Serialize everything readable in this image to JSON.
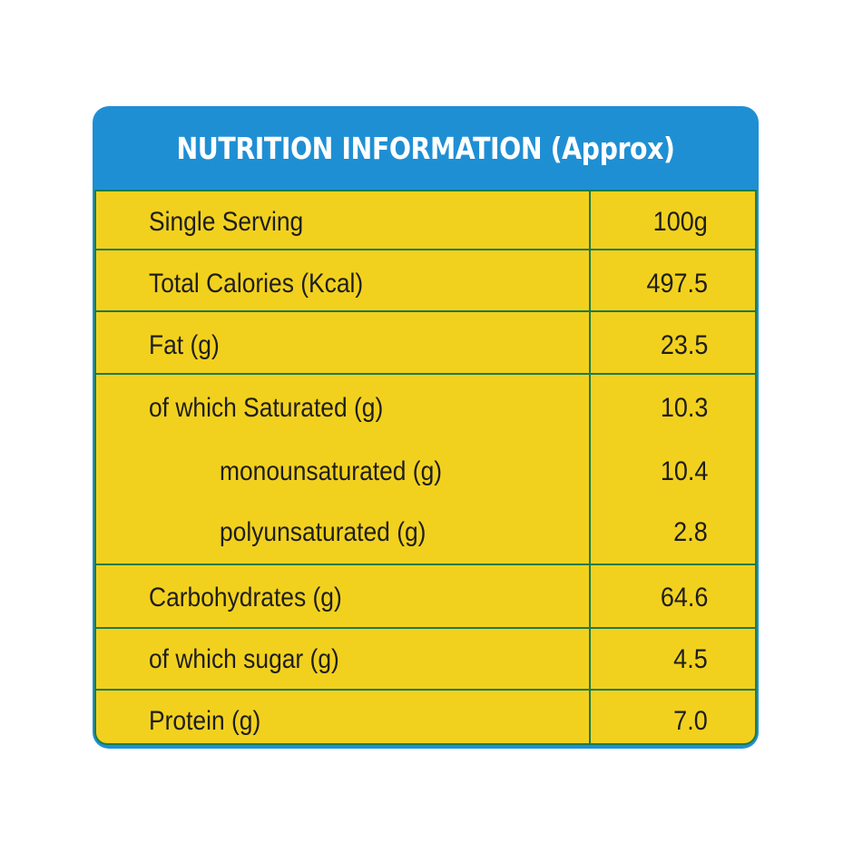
{
  "title": "NUTRITION INFORMATION (Approx)",
  "rows": [
    {
      "label": "Single Serving",
      "value": "100g"
    },
    {
      "label": "Total Calories (Kcal)",
      "value": "497.5"
    },
    {
      "label": "Fat (g)",
      "value": "23.5"
    },
    {
      "label": "of which Saturated (g)",
      "value": "10.3"
    },
    {
      "label": "monounsaturated (g)",
      "value": "10.4"
    },
    {
      "label": "polyunsaturated (g)",
      "value": "2.8"
    },
    {
      "label": "Carbohydrates (g)",
      "value": "64.6"
    },
    {
      "label": "of which sugar (g)",
      "value": "4.5"
    },
    {
      "label": "Protein (g)",
      "value": "7.0"
    }
  ],
  "colors": {
    "header_blue": "#1f8fd4",
    "table_yellow": "#f2d11e",
    "rule_green": "#1d7a4a"
  }
}
